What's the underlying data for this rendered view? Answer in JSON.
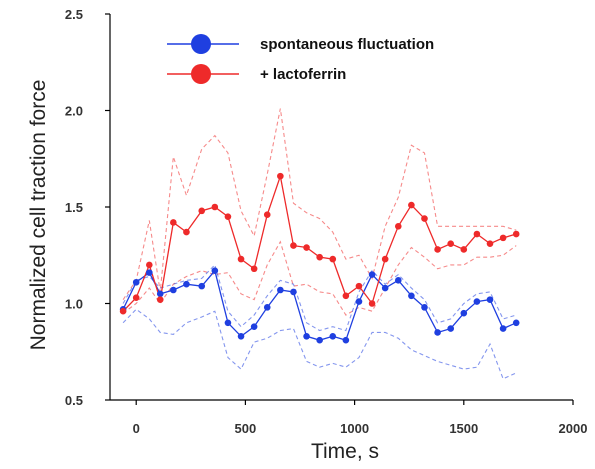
{
  "chart_data": {
    "type": "line",
    "title": "",
    "xlabel": "Time, s",
    "ylabel": "Normalized cell traction force",
    "xlim": [
      -120,
      2000
    ],
    "ylim": [
      0.5,
      2.5
    ],
    "xticks": [
      0,
      500,
      1000,
      1500,
      2000
    ],
    "yticks": [
      0.5,
      1.0,
      1.5,
      2.0,
      2.5
    ],
    "xtick_labels": [
      "0",
      "500",
      "1000",
      "1500",
      "2000"
    ],
    "ytick_labels": [
      "0.5",
      "1.0",
      "1.5",
      "2.0",
      "2.5"
    ],
    "grid": false,
    "legend_position": "top-center",
    "series": [
      {
        "name": "spontaneous fluctuation",
        "color": "#1f3fe0",
        "x": [
          -60,
          0,
          60,
          110,
          170,
          230,
          300,
          360,
          420,
          480,
          540,
          600,
          660,
          720,
          780,
          840,
          900,
          960,
          1020,
          1080,
          1140,
          1200,
          1260,
          1320,
          1380,
          1440,
          1500,
          1560,
          1620,
          1680,
          1740
        ],
        "y": [
          0.97,
          1.11,
          1.16,
          1.05,
          1.07,
          1.1,
          1.09,
          1.17,
          0.9,
          0.83,
          0.88,
          0.98,
          1.07,
          1.06,
          0.83,
          0.81,
          0.83,
          0.81,
          1.01,
          1.15,
          1.08,
          1.12,
          1.04,
          0.98,
          0.85,
          0.87,
          0.95,
          1.01,
          1.02,
          0.87,
          0.9
        ]
      },
      {
        "name": "+ lactoferrin",
        "color": "#ee2a2a",
        "x": [
          -60,
          0,
          60,
          110,
          170,
          230,
          300,
          360,
          420,
          480,
          540,
          600,
          660,
          720,
          780,
          840,
          900,
          960,
          1020,
          1080,
          1140,
          1200,
          1260,
          1320,
          1380,
          1440,
          1500,
          1560,
          1620,
          1680,
          1740
        ],
        "y": [
          0.96,
          1.03,
          1.2,
          1.02,
          1.42,
          1.37,
          1.48,
          1.5,
          1.45,
          1.23,
          1.18,
          1.46,
          1.66,
          1.3,
          1.29,
          1.24,
          1.23,
          1.04,
          1.09,
          1.0,
          1.23,
          1.4,
          1.51,
          1.44,
          1.28,
          1.31,
          1.28,
          1.36,
          1.31,
          1.34,
          1.36
        ]
      }
    ],
    "bands": [
      {
        "color": "#ee2a2a",
        "upper_x": [
          -60,
          0,
          60,
          110,
          170,
          230,
          300,
          360,
          420,
          480,
          540,
          600,
          660,
          720,
          780,
          840,
          900,
          960,
          1020,
          1080,
          1140,
          1200,
          1260,
          1320,
          1380,
          1440,
          1500,
          1560,
          1620,
          1680,
          1740
        ],
        "upper_y": [
          1.02,
          1.12,
          1.43,
          1.06,
          1.76,
          1.56,
          1.8,
          1.87,
          1.78,
          1.48,
          1.35,
          1.67,
          2.01,
          1.52,
          1.47,
          1.44,
          1.37,
          1.23,
          1.25,
          1.13,
          1.4,
          1.55,
          1.82,
          1.78,
          1.4,
          1.4,
          1.4,
          1.4,
          1.4,
          1.4,
          1.38
        ],
        "lower_x": [
          -60,
          0,
          60,
          110,
          170,
          230,
          300,
          360,
          420,
          480,
          540,
          600,
          660,
          720,
          780,
          840,
          900,
          960,
          1020,
          1080,
          1140,
          1200,
          1260,
          1320,
          1380,
          1440,
          1500,
          1560,
          1620,
          1680,
          1740
        ],
        "lower_y": [
          0.95,
          1.0,
          1.08,
          1.0,
          1.1,
          1.14,
          1.17,
          1.15,
          1.16,
          1.05,
          1.02,
          1.2,
          1.32,
          1.09,
          1.1,
          1.06,
          1.05,
          0.94,
          0.98,
          0.96,
          1.08,
          1.2,
          1.29,
          1.24,
          1.18,
          1.2,
          1.2,
          1.24,
          1.24,
          1.25,
          1.3
        ]
      },
      {
        "color": "#1f3fe0",
        "upper_x": [
          -60,
          0,
          60,
          110,
          170,
          230,
          300,
          360,
          420,
          480,
          540,
          600,
          660,
          720,
          780,
          840,
          900,
          960,
          1020,
          1080,
          1140,
          1200,
          1260,
          1320,
          1380,
          1440,
          1500,
          1560,
          1620,
          1680,
          1740
        ],
        "upper_y": [
          1.0,
          1.12,
          1.14,
          1.08,
          1.1,
          1.12,
          1.13,
          1.2,
          0.96,
          0.88,
          0.94,
          1.04,
          1.12,
          1.1,
          0.9,
          0.86,
          0.88,
          0.86,
          1.06,
          1.17,
          1.1,
          1.15,
          1.08,
          1.02,
          0.9,
          0.92,
          1.0,
          1.05,
          1.06,
          0.92,
          0.94
        ],
        "lower_x": [
          -60,
          0,
          60,
          110,
          170,
          230,
          300,
          360,
          420,
          480,
          540,
          600,
          660,
          720,
          780,
          840,
          900,
          960,
          1020,
          1080,
          1140,
          1200,
          1260,
          1320,
          1380,
          1440,
          1500,
          1560,
          1620,
          1680,
          1740
        ],
        "lower_y": [
          0.9,
          0.97,
          0.92,
          0.85,
          0.84,
          0.9,
          0.93,
          0.96,
          0.72,
          0.66,
          0.8,
          0.82,
          0.86,
          0.87,
          0.7,
          0.67,
          0.69,
          0.67,
          0.72,
          0.85,
          0.85,
          0.82,
          0.76,
          0.73,
          0.7,
          0.68,
          0.66,
          0.67,
          0.79,
          0.61,
          0.64
        ]
      }
    ]
  }
}
